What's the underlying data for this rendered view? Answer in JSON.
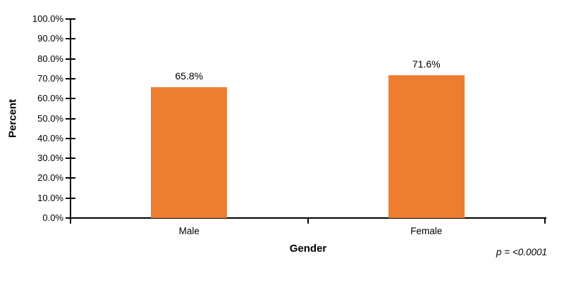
{
  "chart_data": {
    "type": "bar",
    "title": "",
    "categories": [
      "Male",
      "Female"
    ],
    "values": [
      65.8,
      71.6
    ],
    "value_labels": [
      "65.8%",
      "71.6%"
    ],
    "xlabel": "Gender",
    "ylabel": "Percent",
    "ylim": [
      0,
      100
    ],
    "ytick_step": 10,
    "ytick_labels": [
      "0.0%",
      "10.0%",
      "20.0%",
      "30.0%",
      "40.0%",
      "50.0%",
      "60.0%",
      "70.0%",
      "80.0%",
      "90.0%",
      "100.0%"
    ],
    "annotation": "p = <0.0001",
    "bar_color": "#ED7D31",
    "axis_color": "#000000",
    "grid": false,
    "legend_position": "none"
  }
}
